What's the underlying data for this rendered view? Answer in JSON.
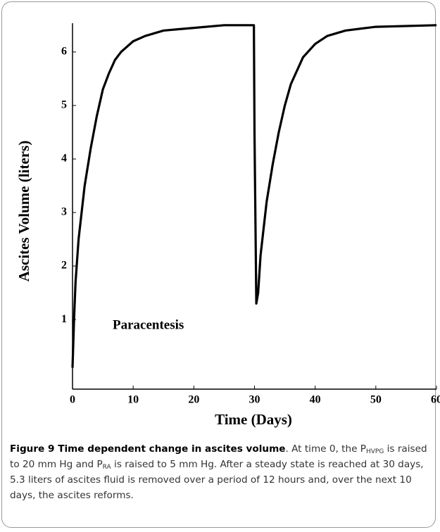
{
  "chart_data": {
    "type": "line",
    "xlabel": "Time  (Days)",
    "ylabel": "Ascites Volume  (liters)",
    "annotation": "Paracentesis",
    "x": [
      0,
      0.25,
      0.5,
      1,
      2,
      3,
      4,
      5,
      6,
      7,
      8,
      10,
      12,
      15,
      20,
      25,
      29.9,
      30,
      30.3,
      30.6,
      31,
      32,
      33,
      34,
      35,
      36,
      38,
      40,
      42,
      45,
      50,
      60
    ],
    "series": [
      {
        "name": "Ascites Volume",
        "color": "#000000",
        "values": [
          0.1,
          1.0,
          1.7,
          2.5,
          3.5,
          4.2,
          4.8,
          5.3,
          5.6,
          5.85,
          6.0,
          6.2,
          6.3,
          6.4,
          6.45,
          6.5,
          6.5,
          4.5,
          1.3,
          1.5,
          2.2,
          3.2,
          3.9,
          4.5,
          5.0,
          5.4,
          5.9,
          6.15,
          6.3,
          6.4,
          6.47,
          6.5
        ]
      }
    ],
    "xlim": [
      0,
      60
    ],
    "xticks": [
      0,
      10,
      20,
      30,
      40,
      50,
      60
    ],
    "ylim": [
      -0.3,
      6.8
    ],
    "yticks": [
      1,
      2,
      3,
      4,
      5,
      6
    ]
  },
  "caption": {
    "title": "Figure 9 Time dependent change in ascites volume",
    "parts": [
      ". At time 0, the P",
      "HVPG",
      " is raised to 20 mm Hg and P",
      "RA",
      " is raised to 5 mm Hg. After a steady state is reached at 30 days, 5.3 liters of ascites fluid is removed over a period of 12 hours and, over the next 10 days, the ascites reforms."
    ]
  }
}
